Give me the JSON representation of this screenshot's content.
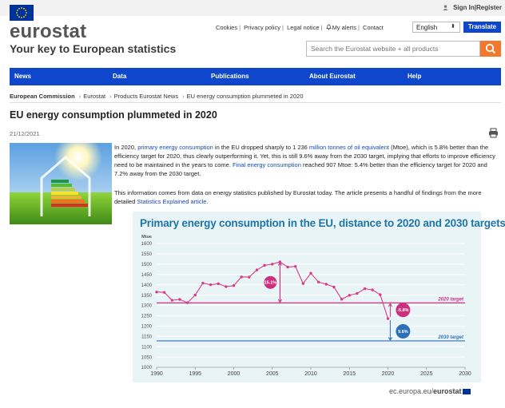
{
  "header": {
    "sign_in": "Sign In",
    "register": "Register",
    "logo": "eurostat",
    "tagline": "Your key to European statistics",
    "links": [
      "Cookies",
      "Privacy policy",
      "Legal notice",
      "My alerts",
      "Contact"
    ],
    "language": "English",
    "translate": "Translate",
    "search_placeholder": "Search the Eurostat website + all products"
  },
  "nav": {
    "items": [
      "News",
      "Data",
      "Publications",
      "About Eurostat",
      "Help"
    ]
  },
  "breadcrumb": [
    "European Commission",
    "Eurostat",
    "Products Eurostat News",
    "EU energy consumption plummeted in 2020"
  ],
  "article": {
    "title": "EU energy consumption plummeted in 2020",
    "date": "21/12/2021",
    "p1_a": "In 2020, ",
    "p1_link1": "primary energy consumption",
    "p1_b": " in the EU dropped sharply to 1 236 ",
    "p1_link2": "million tonnes of oil equivalent",
    "p1_c": " (Mtoe), which is 5.8% better than the efficiency target for 2020, thus clearly outperforming it. Yet, this is still 9.6% away from the 2030 target, implying that efforts to improve efficiency need to be maintained in the years to come. ",
    "p1_link3": "Final energy consumption",
    "p1_d": " reached 907 Mtoe: 5.4% better than the efficiency target for 2020 and 7.2% away from the 2030 target.",
    "p2_a": "This information comes from data on energy statistics published by Eurostat today. The article presents a handful of findings from the more detailed ",
    "p2_link": "Statistics Explained article",
    "p2_b": "."
  },
  "chart": {
    "source": "ec.europa.eu/",
    "source_bold": "eurostat"
  },
  "chart_data": {
    "type": "line",
    "title": "Primary energy consumption in the EU, distance to 2020 and 2030 targets",
    "ylabel": "Mtoe",
    "ylim": [
      1000,
      1600
    ],
    "yticks": [
      1000,
      1050,
      1100,
      1150,
      1200,
      1250,
      1300,
      1350,
      1400,
      1450,
      1500,
      1550,
      1600
    ],
    "xlim": [
      1990,
      2030
    ],
    "xticks": [
      1990,
      1995,
      2000,
      2005,
      2010,
      2015,
      2020,
      2025,
      2030
    ],
    "series": [
      {
        "x": [
          1990,
          1991,
          1992,
          1993,
          1994,
          1995,
          1996,
          1997,
          1998,
          1999,
          2000,
          2001,
          2002,
          2003,
          2004,
          2005,
          2006,
          2007,
          2008,
          2009,
          2010,
          2011,
          2012,
          2013,
          2014,
          2015,
          2016,
          2017,
          2018,
          2019,
          2020
        ],
        "values": [
          1365,
          1363,
          1325,
          1329,
          1313,
          1350,
          1408,
          1400,
          1405,
          1391,
          1396,
          1438,
          1437,
          1472,
          1494,
          1500,
          1511,
          1486,
          1489,
          1406,
          1456,
          1413,
          1403,
          1389,
          1330,
          1349,
          1358,
          1381,
          1375,
          1352,
          1236
        ]
      }
    ],
    "targets": [
      {
        "label": "2020 target",
        "value": 1312,
        "color": "#cc2f7e"
      },
      {
        "label": "2030 target",
        "value": 1128,
        "color": "#2f6fb7"
      }
    ],
    "annotations": [
      {
        "label": "15.1%",
        "color": "#cc2f7e"
      },
      {
        "label": "-5.8%",
        "color": "#cc2f7e"
      },
      {
        "label": "9.6%",
        "color": "#2f6fb7"
      }
    ]
  }
}
